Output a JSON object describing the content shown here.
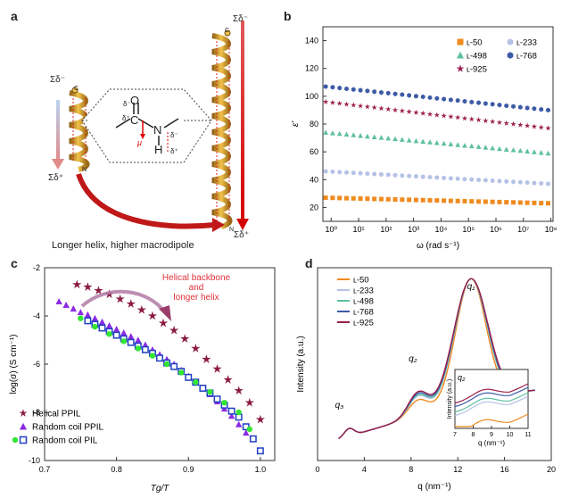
{
  "figure": {
    "panel_a": {
      "letter": "a",
      "caption": "Longer helix, higher macrodipole",
      "short_helix": {
        "top": "Σδ⁻",
        "bottom": "Σδ⁺",
        "c_label": "C",
        "n_label": "N"
      },
      "long_helix": {
        "top": "Σδ⁻",
        "bottom": "Σδ⁺",
        "c_label": "C",
        "n_label": "N"
      },
      "zoom": {
        "delta_minus_o": "δ⁻",
        "o": "O",
        "c": "C",
        "delta_plus_c": "δ⁺",
        "n": "N",
        "h": "H",
        "mu": "μ",
        "delta_minus_n": "δ⁻",
        "delta_plus_h": "δ⁺"
      }
    },
    "panel_b": {
      "letter": "b"
    },
    "panel_c": {
      "letter": "c",
      "annotation": [
        "Helical backbone",
        "and",
        "longer helix"
      ]
    },
    "panel_d": {
      "letter": "d",
      "peaks": {
        "q1": "q₁",
        "q2": "q₂",
        "q3": "q₃"
      }
    }
  },
  "chart_data": [
    {
      "id": "b",
      "type": "scatter",
      "xlabel": "ω (rad s⁻¹)",
      "ylabel": "ε'",
      "xscale": "log",
      "xlim": [
        0.5,
        120000000.0
      ],
      "ylim": [
        10,
        150
      ],
      "xticks": [
        "10⁰",
        "10¹",
        "10²",
        "10³",
        "10⁴",
        "10⁵",
        "10⁶",
        "10⁷",
        "10⁸"
      ],
      "yticks": [
        20,
        40,
        60,
        80,
        100,
        120,
        140
      ],
      "legend": "top-right",
      "series": [
        {
          "name": "ʟ-50",
          "marker": "square",
          "color": "#f08a1e",
          "y_start": 27,
          "y_end": 23
        },
        {
          "name": "ʟ-233",
          "marker": "circle",
          "color": "#b5c2e6",
          "y_start": 46,
          "y_end": 37
        },
        {
          "name": "ʟ-498",
          "marker": "triangle",
          "color": "#5fbfa0",
          "y_start": 74,
          "y_end": 59
        },
        {
          "name": "ʟ-768",
          "marker": "hexagon",
          "color": "#3c5aa6",
          "y_start": 107,
          "y_end": 90
        },
        {
          "name": "ʟ-925",
          "marker": "star",
          "color": "#9b1e4e",
          "y_start": 96,
          "y_end": 77
        }
      ]
    },
    {
      "id": "c",
      "type": "scatter",
      "xlabel": "Tg/T",
      "ylabel": "log(σ) (S cm⁻¹)",
      "xlim": [
        0.7,
        1.02
      ],
      "ylim": [
        -10,
        -2
      ],
      "xticks": [
        0.7,
        0.8,
        0.9,
        1.0
      ],
      "yticks": [
        -10,
        -8,
        -6,
        -4,
        -2
      ],
      "legend": "bottom-left",
      "series": [
        {
          "name": "Helical PPIL",
          "marker": "star",
          "color": "#8b1a42",
          "x": [
            0.745,
            0.76,
            0.775,
            0.79,
            0.805,
            0.82,
            0.835,
            0.85,
            0.865,
            0.88,
            0.895,
            0.91,
            0.925,
            0.94,
            0.955,
            0.97,
            0.985,
            1.0
          ],
          "y": [
            -2.7,
            -2.8,
            -2.95,
            -3.1,
            -3.3,
            -3.5,
            -3.75,
            -4.0,
            -4.3,
            -4.6,
            -4.95,
            -5.35,
            -5.8,
            -6.2,
            -6.65,
            -7.1,
            -7.6,
            -8.3
          ]
        },
        {
          "name": "Random coil PPIL",
          "marker": "triangle",
          "color": "#8a2be2",
          "x": [
            0.72,
            0.73,
            0.74,
            0.75,
            0.76,
            0.77,
            0.78,
            0.79,
            0.8,
            0.81,
            0.82,
            0.83,
            0.84,
            0.85,
            0.86,
            0.87,
            0.88,
            0.89,
            0.9,
            0.91,
            0.92,
            0.93,
            0.94,
            0.95,
            0.96,
            0.97,
            0.98
          ],
          "y": [
            -3.4,
            -3.55,
            -3.7,
            -3.85,
            -3.95,
            -4.1,
            -4.25,
            -4.4,
            -4.55,
            -4.7,
            -4.85,
            -5.0,
            -5.2,
            -5.4,
            -5.6,
            -5.8,
            -6.0,
            -6.25,
            -6.5,
            -6.75,
            -7.0,
            -7.25,
            -7.55,
            -7.85,
            -8.15,
            -8.5,
            -8.85
          ]
        },
        {
          "name": "Random coil PIL",
          "marker": "square",
          "color": "#1f3fc2",
          "x": [
            0.76,
            0.77,
            0.78,
            0.79,
            0.8,
            0.81,
            0.82,
            0.83,
            0.84,
            0.85,
            0.86,
            0.87,
            0.88,
            0.89,
            0.9,
            0.91,
            0.92,
            0.93,
            0.94,
            0.95,
            0.96,
            0.97,
            0.98,
            0.99,
            1.0
          ],
          "y": [
            -4.2,
            -4.35,
            -4.5,
            -4.65,
            -4.8,
            -4.95,
            -5.1,
            -5.25,
            -5.4,
            -5.55,
            -5.75,
            -5.95,
            -6.1,
            -6.3,
            -6.55,
            -6.75,
            -7.0,
            -7.2,
            -7.45,
            -7.7,
            -7.95,
            -8.2,
            -8.6,
            -9.1,
            -9.6
          ]
        },
        {
          "name": "Random coil PIL",
          "marker": "circle",
          "color": "#32e632",
          "x": [
            0.75,
            0.77,
            0.79,
            0.81,
            0.83,
            0.85,
            0.87,
            0.89,
            0.91,
            0.93,
            0.95,
            0.97,
            0.985
          ],
          "y": [
            -4.1,
            -4.45,
            -4.75,
            -5.05,
            -5.35,
            -5.65,
            -6.0,
            -6.35,
            -6.75,
            -7.15,
            -7.6,
            -8.0,
            -8.7
          ]
        }
      ]
    },
    {
      "id": "d",
      "type": "line",
      "xlabel": "q (nm⁻¹)",
      "ylabel": "Intensity (a.u.)",
      "xlim": [
        0,
        20
      ],
      "xticks": [
        0,
        4,
        8,
        12,
        16,
        20
      ],
      "legend": "top-left",
      "series": [
        {
          "name": "ʟ-50",
          "color": "#f08a1e"
        },
        {
          "name": "ʟ-233",
          "color": "#b5c2e6"
        },
        {
          "name": "ʟ-498",
          "color": "#5fbfa0"
        },
        {
          "name": "ʟ-768",
          "color": "#3c5aa6"
        },
        {
          "name": "ʟ-925",
          "color": "#9b1e4e"
        }
      ],
      "inset": {
        "xlabel": "q (nm⁻¹)",
        "ylabel": "Intensity (a.u.)",
        "xticks": [
          7,
          8,
          9,
          10,
          11
        ],
        "peak": "q₂"
      }
    }
  ]
}
